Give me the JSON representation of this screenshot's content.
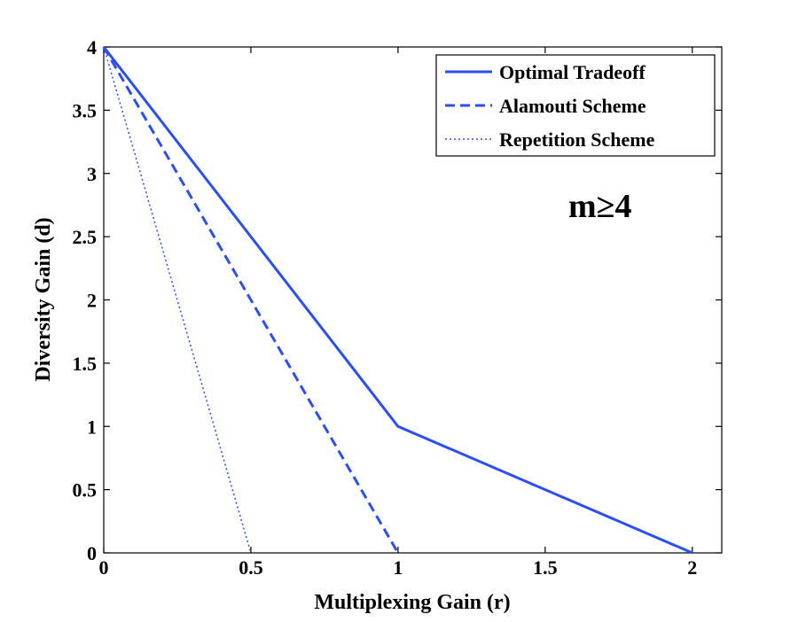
{
  "chart_data": {
    "type": "line",
    "xlabel": "Multiplexing Gain (r)",
    "ylabel": "Diversity Gain (d)",
    "xlim": [
      0,
      2.1
    ],
    "ylim": [
      0,
      4
    ],
    "xticks": [
      0,
      0.5,
      1,
      1.5,
      2
    ],
    "xtick_labels": [
      "0",
      "0.5",
      "1",
      "1.5",
      "2"
    ],
    "yticks": [
      0,
      0.5,
      1,
      1.5,
      2,
      2.5,
      3,
      3.5,
      4
    ],
    "ytick_labels": [
      "0",
      "0.5",
      "1",
      "1.5",
      "2",
      "2.5",
      "3",
      "3.5",
      "4"
    ],
    "grid": false,
    "legend_position": "top-right",
    "annotation": "m≥4",
    "series": [
      {
        "name": "Optimal Tradeoff",
        "style": "solid",
        "color": "#2a4ef0",
        "points": [
          [
            0,
            4
          ],
          [
            1,
            1
          ],
          [
            2,
            0
          ]
        ]
      },
      {
        "name": "Alamouti Scheme",
        "style": "dashed",
        "color": "#2a4ef0",
        "points": [
          [
            0,
            4
          ],
          [
            1,
            0
          ]
        ]
      },
      {
        "name": "Repetition Scheme",
        "style": "dotted",
        "color": "#2a4ef0",
        "points": [
          [
            0,
            4
          ],
          [
            0.5,
            0
          ]
        ]
      }
    ]
  }
}
